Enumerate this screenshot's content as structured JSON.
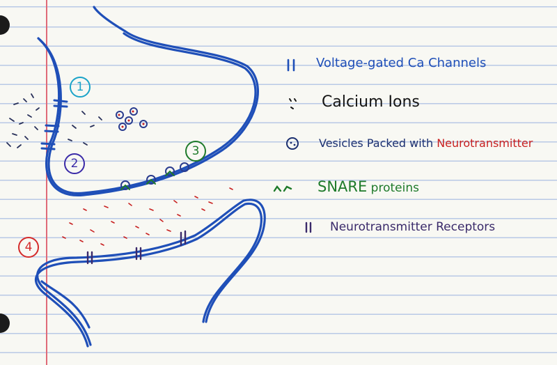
{
  "legend": {
    "item1": "Voltage-gated Ca Channels",
    "item2": "Calcium Ions",
    "item3a": "Vesicles Packed with ",
    "item3b": "Neurotransmitter",
    "item4a": "SNARE",
    "item4b": " proteins",
    "item5": "Neurotransmitter Receptors"
  },
  "labels": {
    "n1": "1",
    "n2": "2",
    "n3": "3",
    "n4": "4"
  },
  "colors": {
    "neuron": "#1f4fb8",
    "item1": "#1f4fb8",
    "item2": "#151515",
    "item3": "#1b2f70",
    "neurotransmitter_red": "#c82020",
    "snare_green": "#1e7a2a",
    "receptor_purple": "#3a2a6a",
    "label1": "#1aa3c8",
    "label2": "#3a2aa8",
    "label3": "#1e7a2a",
    "label4": "#d42a2a"
  }
}
